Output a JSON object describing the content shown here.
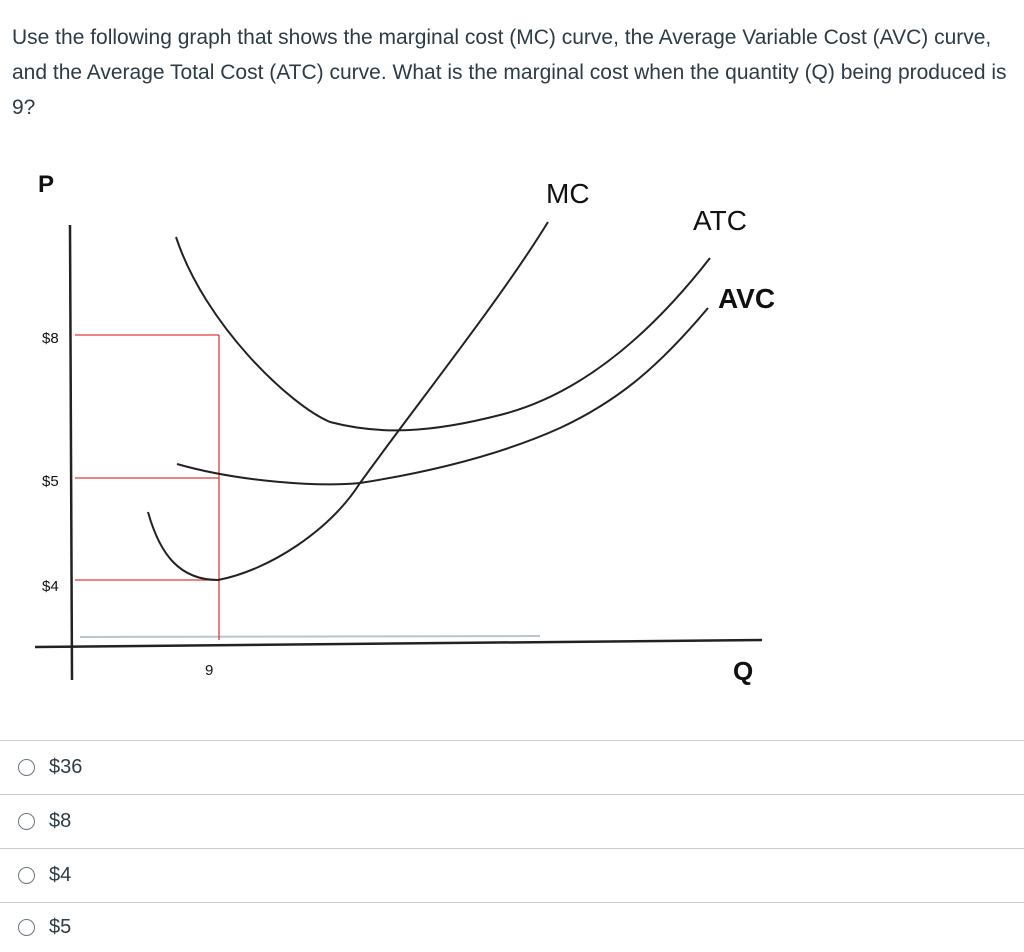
{
  "question": {
    "text": "Use the following graph that shows the marginal cost (MC) curve, the Average Variable Cost (AVC) curve, and the Average Total Cost (ATC) curve. What is the marginal cost when the quantity (Q) being produced is 9?"
  },
  "graph": {
    "y_axis_label": "P",
    "x_axis_label": "Q",
    "y_ticks": [
      "$8",
      "$5",
      "$4"
    ],
    "x_tick": "9",
    "curves": {
      "mc": "MC",
      "atc": "ATC",
      "avc": "AVC"
    },
    "colors": {
      "guide_lines": "#e03a3a",
      "curves": "#222222"
    }
  },
  "answers": [
    {
      "label": "$36"
    },
    {
      "label": "$8"
    },
    {
      "label": "$4"
    },
    {
      "label": "$5"
    }
  ]
}
